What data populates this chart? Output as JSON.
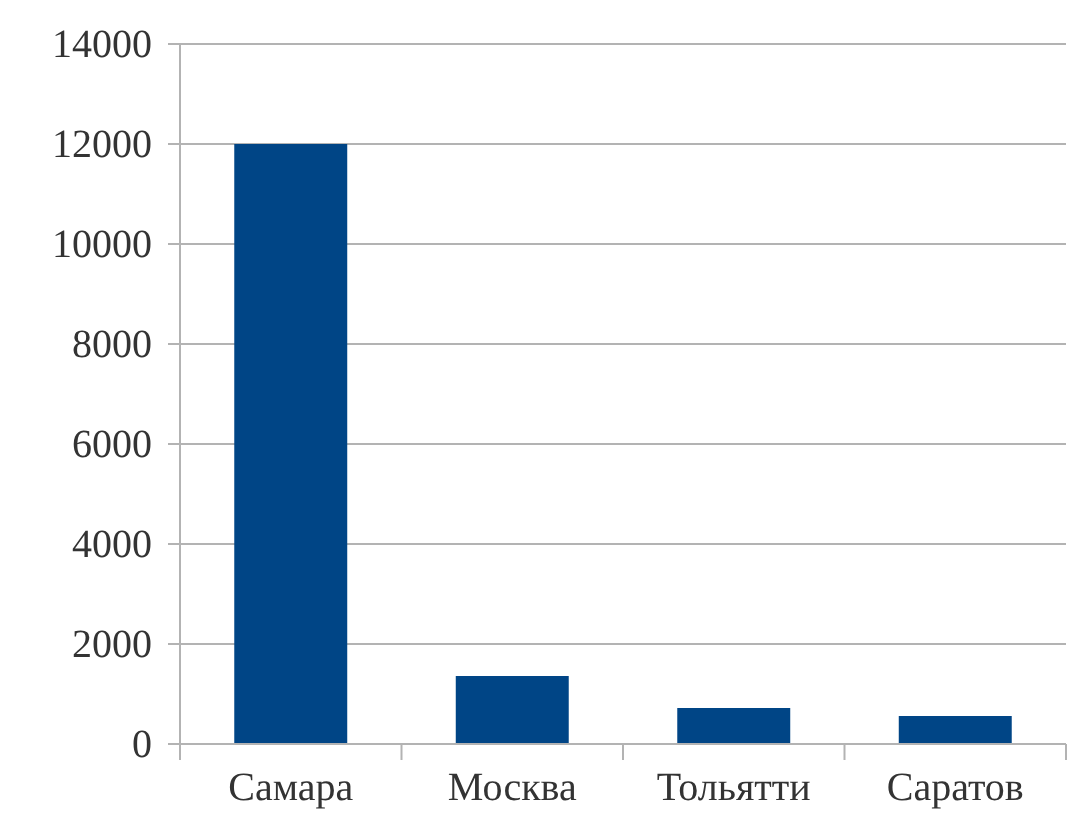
{
  "chart_data": {
    "type": "bar",
    "categories": [
      "Самара",
      "Москва",
      "Тольятти",
      "Саратов"
    ],
    "values": [
      12000,
      1360,
      720,
      560
    ],
    "color": "#004586",
    "ylim": [
      0,
      14000
    ],
    "yticks": [
      0,
      2000,
      4000,
      6000,
      8000,
      10000,
      12000,
      14000
    ],
    "grid": "y"
  }
}
